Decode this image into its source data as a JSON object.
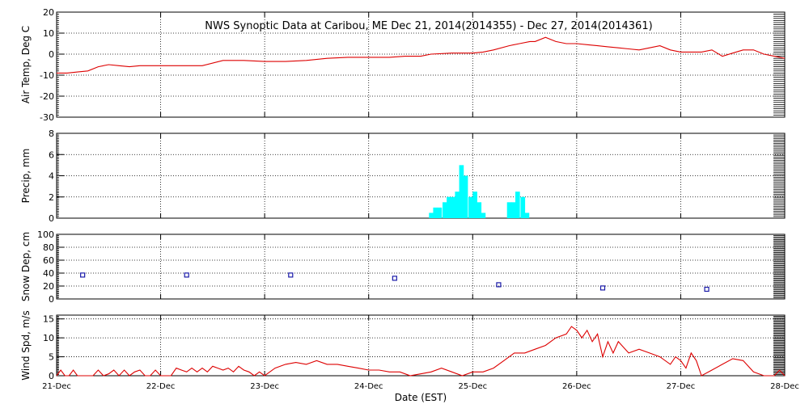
{
  "title": "NWS Synoptic Data at Caribou, ME    Dec 21, 2014(2014355) - Dec 27, 2014(2014361)",
  "xlabel": "Date (EST)",
  "chart_data": [
    {
      "type": "line",
      "ylabel": "Air Temp, Deg C",
      "ylim": [
        -30,
        20
      ],
      "yticks": [
        -30,
        -20,
        -10,
        0,
        10,
        20
      ],
      "xlim": [
        0,
        7
      ],
      "x_tick_labels": [
        "21-Dec",
        "22-Dec",
        "23-Dec",
        "24-Dec",
        "25-Dec",
        "26-Dec",
        "27-Dec",
        "28-Dec"
      ],
      "grid": true,
      "color": "#dd0000",
      "series": [
        {
          "x": [
            0,
            0.1,
            0.2,
            0.3,
            0.4,
            0.5,
            0.6,
            0.7,
            0.8,
            0.9,
            1.0,
            1.2,
            1.4,
            1.6,
            1.8,
            2.0,
            2.2,
            2.4,
            2.6,
            2.8,
            3.0,
            3.2,
            3.35,
            3.5,
            3.6,
            3.8,
            3.9,
            4.0,
            4.1,
            4.2,
            4.35,
            4.45,
            4.55,
            4.6,
            4.7,
            4.8,
            4.9,
            5.0,
            5.1,
            5.2,
            5.3,
            5.4,
            5.5,
            5.6,
            5.7,
            5.8,
            5.9,
            6.0,
            6.1,
            6.2,
            6.3,
            6.4,
            6.5,
            6.6,
            6.7,
            6.8,
            6.9,
            7.0
          ],
          "y": [
            -9,
            -9,
            -8.5,
            -8,
            -6,
            -5,
            -5.5,
            -6,
            -5.5,
            -5.5,
            -5.5,
            -5.5,
            -5.5,
            -3,
            -3,
            -3.5,
            -3.5,
            -3,
            -2,
            -1.5,
            -1.5,
            -1.5,
            -1,
            -1,
            0,
            0.5,
            0.5,
            0.5,
            1,
            2,
            4,
            5,
            6,
            6,
            8,
            6,
            5,
            5,
            4.5,
            4,
            3.5,
            3,
            2.5,
            2,
            3,
            4,
            2,
            1,
            1,
            1,
            2,
            -1,
            0.5,
            2,
            2,
            0,
            -1,
            -2
          ]
        }
      ]
    },
    {
      "type": "bar",
      "ylabel": "Precip, mm",
      "ylim": [
        0,
        8
      ],
      "yticks": [
        0,
        2,
        4,
        6,
        8
      ],
      "xlim": [
        0,
        7
      ],
      "grid": true,
      "color": "#00ffff",
      "bin_width": 0.0417,
      "x": [
        3.58,
        3.62,
        3.66,
        3.71,
        3.75,
        3.79,
        3.83,
        3.87,
        3.91,
        3.96,
        4.0,
        4.04,
        4.08,
        4.33,
        4.37,
        4.41,
        4.46,
        4.5
      ],
      "values": [
        0.5,
        1.0,
        1.0,
        1.5,
        2.0,
        2.0,
        2.5,
        5.0,
        4.0,
        2.0,
        2.5,
        1.5,
        0.5,
        1.5,
        1.5,
        2.5,
        2.0,
        0.5
      ]
    },
    {
      "type": "scatter",
      "ylabel": "Snow Dep, cm",
      "ylim": [
        0,
        100
      ],
      "yticks": [
        0,
        20,
        40,
        60,
        80,
        100
      ],
      "xlim": [
        0,
        7
      ],
      "grid": true,
      "color": "#1a1aa8",
      "x": [
        0.25,
        1.25,
        2.25,
        3.25,
        4.25,
        5.25,
        6.25
      ],
      "y": [
        37,
        37,
        37,
        32,
        22,
        17,
        15
      ]
    },
    {
      "type": "line",
      "ylabel": "Wind Spd, m/s",
      "ylim": [
        0,
        16
      ],
      "yticks": [
        0,
        5,
        10,
        15
      ],
      "xlim": [
        0,
        7
      ],
      "grid": true,
      "color": "#dd0000",
      "series": [
        {
          "x": [
            0,
            0.04,
            0.08,
            0.12,
            0.16,
            0.2,
            0.25,
            0.3,
            0.35,
            0.4,
            0.45,
            0.5,
            0.55,
            0.6,
            0.65,
            0.7,
            0.75,
            0.8,
            0.85,
            0.9,
            0.95,
            1.0,
            1.05,
            1.1,
            1.15,
            1.2,
            1.25,
            1.3,
            1.35,
            1.4,
            1.45,
            1.5,
            1.55,
            1.6,
            1.65,
            1.7,
            1.75,
            1.8,
            1.85,
            1.9,
            1.95,
            2.0,
            2.1,
            2.2,
            2.3,
            2.4,
            2.5,
            2.6,
            2.7,
            2.8,
            2.9,
            3.0,
            3.1,
            3.2,
            3.3,
            3.4,
            3.5,
            3.6,
            3.7,
            3.8,
            3.9,
            4.0,
            4.1,
            4.2,
            4.3,
            4.4,
            4.5,
            4.6,
            4.7,
            4.8,
            4.9,
            4.95,
            5.0,
            5.05,
            5.1,
            5.15,
            5.2,
            5.25,
            5.3,
            5.35,
            5.4,
            5.5,
            5.6,
            5.7,
            5.8,
            5.9,
            5.95,
            6.0,
            6.05,
            6.1,
            6.15,
            6.2,
            6.3,
            6.4,
            6.5,
            6.6,
            6.7,
            6.8,
            6.9,
            6.95,
            7.0
          ],
          "y": [
            0,
            1.5,
            0,
            0,
            1.5,
            0,
            0,
            0,
            0,
            1.5,
            0,
            0.5,
            1.5,
            0,
            1.5,
            0,
            1,
            1.5,
            0,
            0,
            1.5,
            0,
            0,
            0,
            2,
            1.5,
            1,
            2,
            1,
            2,
            1,
            2.5,
            2,
            1.5,
            2,
            1,
            2.5,
            1.5,
            1,
            0,
            1,
            0,
            2,
            3,
            3.5,
            3,
            4,
            3,
            3,
            2.5,
            2,
            1.5,
            1.5,
            1,
            1,
            0,
            0.5,
            1,
            2,
            1,
            0,
            1,
            1,
            2,
            4,
            6,
            6,
            7,
            8,
            10,
            11,
            13,
            12,
            10,
            12,
            9,
            11,
            5,
            9,
            6,
            9,
            6,
            7,
            6,
            5,
            3,
            5,
            4,
            2,
            6,
            4,
            0,
            1.5,
            3,
            4.5,
            4,
            1,
            0,
            0,
            1.5,
            0
          ]
        }
      ]
    }
  ]
}
